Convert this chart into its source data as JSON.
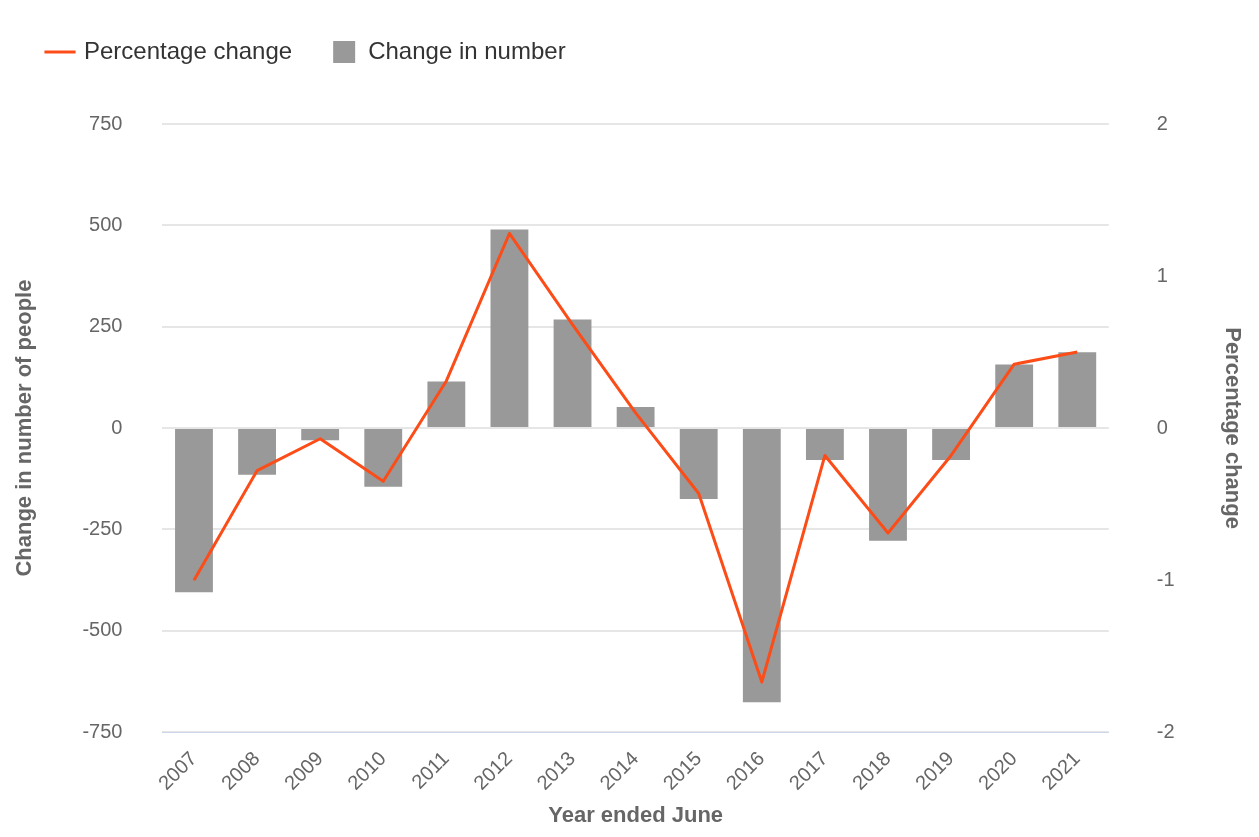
{
  "chart_data": {
    "type": "bar",
    "xlabel": "Year ended June",
    "ylabel": "Change in number of people",
    "y2label": "Percentage change",
    "categories": [
      "2007",
      "2008",
      "2009",
      "2010",
      "2011",
      "2012",
      "2013",
      "2014",
      "2015",
      "2016",
      "2017",
      "2018",
      "2019",
      "2020",
      "2021"
    ],
    "series": [
      {
        "name": "Percentage change",
        "type": "line",
        "axis": "y2",
        "color": "#fc4d19",
        "values": [
          -1.0,
          -0.28,
          -0.07,
          -0.35,
          0.31,
          1.28,
          0.68,
          0.1,
          -0.43,
          -1.67,
          -0.18,
          -0.69,
          -0.18,
          0.42,
          0.5
        ]
      },
      {
        "name": "Change in number",
        "color": "#999999",
        "values": [
          -405,
          -115,
          -30,
          -145,
          115,
          490,
          268,
          52,
          -175,
          -676,
          -79,
          -278,
          -79,
          157,
          187
        ]
      }
    ],
    "ylim": [
      -750,
      750
    ],
    "yticks": [
      -750,
      -500,
      -250,
      0,
      250,
      500,
      750
    ],
    "y2lim": [
      -2,
      2
    ],
    "y2ticks": [
      -2,
      -1,
      0,
      1,
      2
    ],
    "grid": "y",
    "legend": "top left",
    "marker": "none",
    "line_style": "solid"
  }
}
